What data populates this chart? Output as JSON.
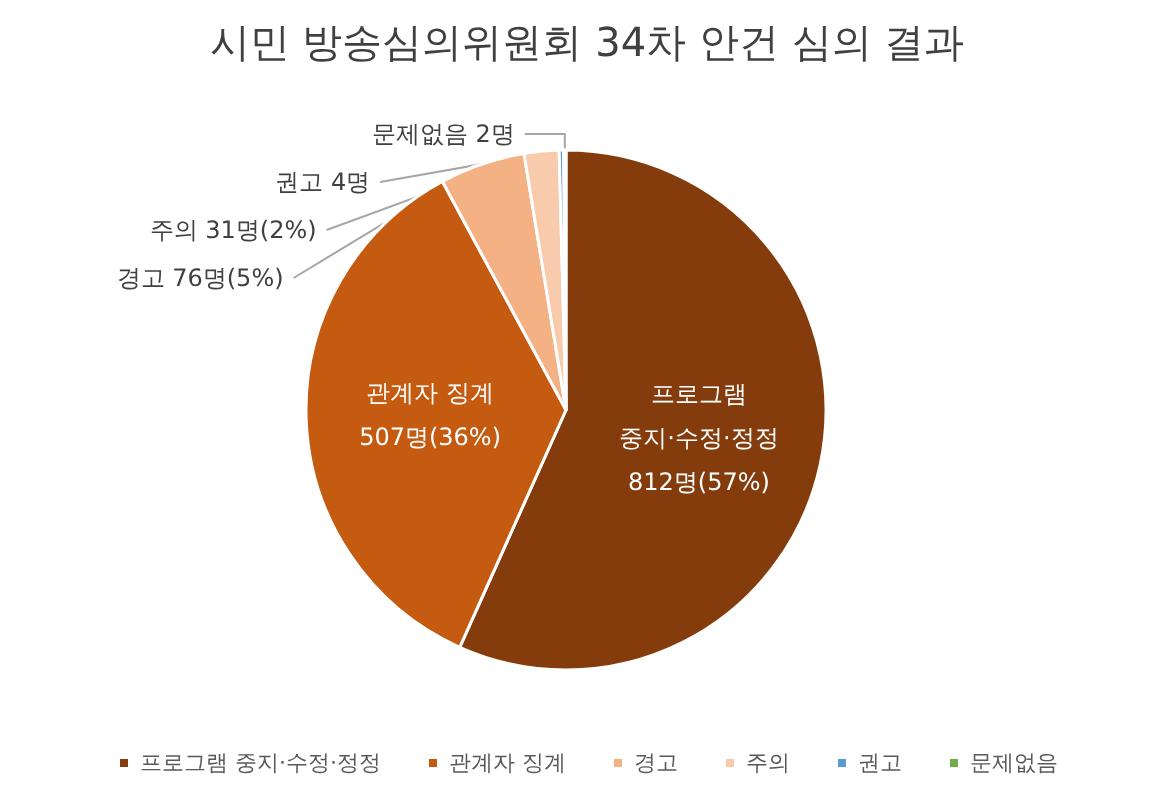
{
  "chart_data": {
    "type": "pie",
    "title": "시민 방송심의위원회 34차 안건 심의 결과",
    "categories": [
      "프로그램 중지·수정·정정",
      "관계자 징계",
      "경고",
      "주의",
      "권고",
      "문제없음"
    ],
    "values": [
      812,
      507,
      76,
      31,
      4,
      2
    ],
    "colors": [
      "#843c0c",
      "#c55a11",
      "#f4b183",
      "#f8cbad",
      "#5b9bd5",
      "#70ad47"
    ],
    "value_labels": [
      "프로그램\n중지·수정·정정\n812명(57%)",
      "관계자 징계\n507명(36%)",
      "경고 76명(5%)",
      "주의 31명(2%)",
      "권고 4명",
      "문제없음 2명"
    ],
    "legend": "bottom"
  }
}
